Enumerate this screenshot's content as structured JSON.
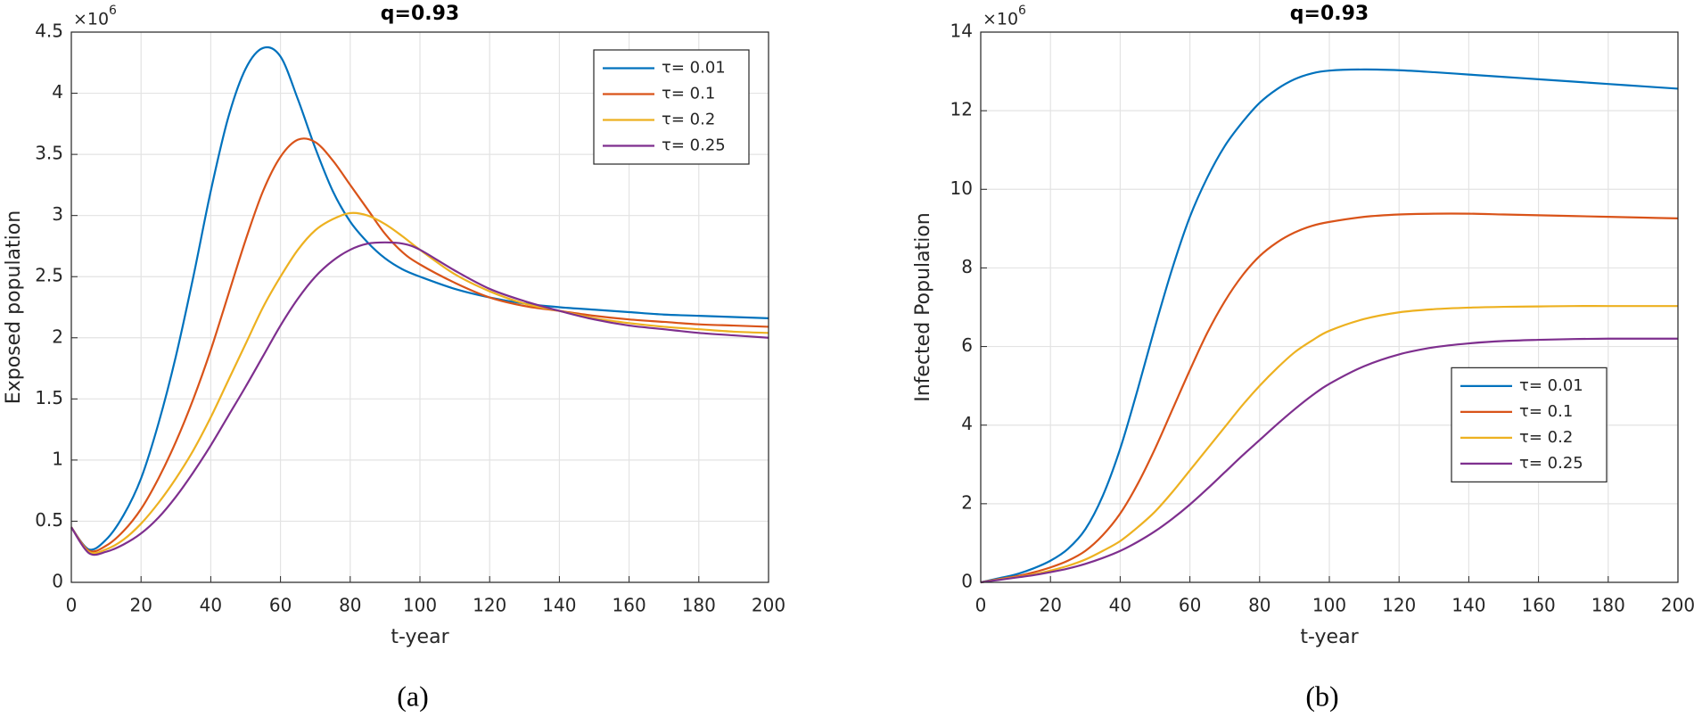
{
  "chart_data": [
    {
      "type": "line",
      "title": "q=0.93",
      "xlabel": "t-year",
      "ylabel": "Exposed population",
      "caption": "(a)",
      "y_scale": "×10",
      "y_scale_exponent": "6",
      "x": [
        0,
        5,
        10,
        15,
        20,
        25,
        30,
        35,
        40,
        45,
        50,
        55,
        60,
        65,
        70,
        75,
        80,
        85,
        90,
        95,
        100,
        110,
        120,
        130,
        140,
        150,
        160,
        170,
        180,
        190,
        200
      ],
      "series": [
        {
          "name": "τ= 0.01",
          "color": "#0072BD",
          "values": [
            0.45,
            0.27,
            0.35,
            0.55,
            0.85,
            1.3,
            1.85,
            2.5,
            3.2,
            3.8,
            4.2,
            4.37,
            4.3,
            3.95,
            3.55,
            3.2,
            2.95,
            2.78,
            2.65,
            2.56,
            2.5,
            2.4,
            2.33,
            2.28,
            2.25,
            2.23,
            2.21,
            2.19,
            2.18,
            2.17,
            2.16
          ]
        },
        {
          "name": "τ= 0.1",
          "color": "#D95319",
          "values": [
            0.45,
            0.26,
            0.3,
            0.42,
            0.6,
            0.85,
            1.15,
            1.5,
            1.9,
            2.35,
            2.8,
            3.2,
            3.48,
            3.62,
            3.6,
            3.45,
            3.25,
            3.05,
            2.85,
            2.7,
            2.6,
            2.45,
            2.33,
            2.26,
            2.22,
            2.18,
            2.15,
            2.13,
            2.11,
            2.1,
            2.09
          ]
        },
        {
          "name": "τ= 0.2",
          "color": "#EDB120",
          "values": [
            0.45,
            0.25,
            0.27,
            0.35,
            0.48,
            0.65,
            0.85,
            1.08,
            1.35,
            1.65,
            1.95,
            2.25,
            2.5,
            2.72,
            2.88,
            2.97,
            3.02,
            3.0,
            2.93,
            2.83,
            2.72,
            2.52,
            2.38,
            2.28,
            2.22,
            2.16,
            2.12,
            2.09,
            2.07,
            2.05,
            2.04
          ]
        },
        {
          "name": "τ= 0.25",
          "color": "#7E2F8E",
          "values": [
            0.45,
            0.24,
            0.25,
            0.31,
            0.4,
            0.53,
            0.7,
            0.9,
            1.12,
            1.36,
            1.6,
            1.85,
            2.1,
            2.32,
            2.5,
            2.63,
            2.72,
            2.77,
            2.78,
            2.77,
            2.72,
            2.55,
            2.4,
            2.3,
            2.22,
            2.15,
            2.1,
            2.07,
            2.04,
            2.02,
            2.0
          ]
        }
      ],
      "xlim": [
        0,
        200
      ],
      "xticks": [
        0,
        20,
        40,
        60,
        80,
        100,
        120,
        140,
        160,
        180,
        200
      ],
      "ylim": [
        0,
        4.5
      ],
      "yticks": [
        0,
        0.5,
        1,
        1.5,
        2,
        2.5,
        3,
        3.5,
        4,
        4.5
      ],
      "grid": true,
      "legend": "northeast"
    },
    {
      "type": "line",
      "title": "q=0.93",
      "xlabel": "t-year",
      "ylabel": "Infected Population",
      "caption": "(b)",
      "y_scale": "×10",
      "y_scale_exponent": "6",
      "x": [
        0,
        5,
        10,
        15,
        20,
        25,
        30,
        35,
        40,
        45,
        50,
        55,
        60,
        65,
        70,
        75,
        80,
        85,
        90,
        95,
        100,
        110,
        120,
        130,
        140,
        150,
        160,
        170,
        180,
        190,
        200
      ],
      "series": [
        {
          "name": "τ= 0.01",
          "color": "#0072BD",
          "values": [
            0,
            0.1,
            0.2,
            0.35,
            0.55,
            0.85,
            1.35,
            2.2,
            3.4,
            4.9,
            6.5,
            8.0,
            9.3,
            10.3,
            11.1,
            11.7,
            12.2,
            12.55,
            12.8,
            12.95,
            13.02,
            13.05,
            13.03,
            12.98,
            12.92,
            12.86,
            12.8,
            12.74,
            12.68,
            12.62,
            12.56
          ]
        },
        {
          "name": "τ= 0.1",
          "color": "#D95319",
          "values": [
            0,
            0.08,
            0.15,
            0.25,
            0.38,
            0.55,
            0.8,
            1.2,
            1.75,
            2.5,
            3.4,
            4.4,
            5.4,
            6.35,
            7.15,
            7.8,
            8.3,
            8.65,
            8.9,
            9.07,
            9.17,
            9.3,
            9.36,
            9.38,
            9.38,
            9.36,
            9.34,
            9.32,
            9.3,
            9.28,
            9.26
          ]
        },
        {
          "name": "τ= 0.2",
          "color": "#EDB120",
          "values": [
            0,
            0.07,
            0.13,
            0.2,
            0.3,
            0.42,
            0.58,
            0.8,
            1.05,
            1.4,
            1.8,
            2.3,
            2.85,
            3.4,
            3.95,
            4.5,
            5.0,
            5.45,
            5.85,
            6.15,
            6.4,
            6.7,
            6.87,
            6.95,
            6.99,
            7.01,
            7.02,
            7.03,
            7.03,
            7.03,
            7.03
          ]
        },
        {
          "name": "τ= 0.25",
          "color": "#7E2F8E",
          "values": [
            0,
            0.06,
            0.12,
            0.18,
            0.26,
            0.35,
            0.47,
            0.62,
            0.8,
            1.03,
            1.3,
            1.62,
            1.98,
            2.38,
            2.8,
            3.22,
            3.62,
            4.02,
            4.4,
            4.75,
            5.05,
            5.5,
            5.8,
            5.98,
            6.08,
            6.14,
            6.17,
            6.19,
            6.2,
            6.2,
            6.2
          ]
        }
      ],
      "xlim": [
        0,
        200
      ],
      "xticks": [
        0,
        20,
        40,
        60,
        80,
        100,
        120,
        140,
        160,
        180,
        200
      ],
      "ylim": [
        0,
        14
      ],
      "yticks": [
        0,
        2,
        4,
        6,
        8,
        10,
        12,
        14
      ],
      "grid": true,
      "legend": "east"
    }
  ]
}
